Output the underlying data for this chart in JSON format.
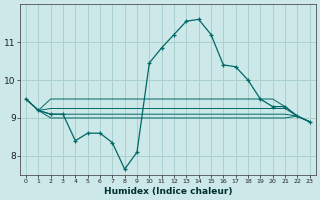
{
  "xlabel": "Humidex (Indice chaleur)",
  "background_color": "#cce8e8",
  "grid_color": "#aad0d0",
  "line_color": "#006868",
  "x_values": [
    0,
    1,
    2,
    3,
    4,
    5,
    6,
    7,
    8,
    9,
    10,
    11,
    12,
    13,
    14,
    15,
    16,
    17,
    18,
    19,
    20,
    21,
    22,
    23
  ],
  "main_y": [
    9.5,
    9.2,
    9.1,
    9.1,
    8.4,
    8.6,
    8.6,
    8.35,
    7.65,
    8.1,
    10.45,
    10.85,
    11.2,
    11.55,
    11.6,
    11.2,
    10.4,
    10.35,
    10.0,
    9.5,
    9.3,
    9.3,
    9.05,
    8.9
  ],
  "line1_y": [
    9.5,
    9.2,
    9.5,
    9.5,
    9.5,
    9.5,
    9.5,
    9.5,
    9.5,
    9.5,
    9.5,
    9.5,
    9.5,
    9.5,
    9.5,
    9.5,
    9.5,
    9.5,
    9.5,
    9.5,
    9.5,
    9.3,
    9.05,
    8.9
  ],
  "line2_y": [
    9.5,
    9.2,
    9.25,
    9.25,
    9.25,
    9.25,
    9.25,
    9.25,
    9.25,
    9.25,
    9.25,
    9.25,
    9.25,
    9.25,
    9.25,
    9.25,
    9.25,
    9.25,
    9.25,
    9.25,
    9.25,
    9.25,
    9.05,
    8.9
  ],
  "line3_y": [
    9.5,
    9.2,
    9.1,
    9.1,
    9.1,
    9.1,
    9.1,
    9.1,
    9.1,
    9.1,
    9.1,
    9.1,
    9.1,
    9.1,
    9.1,
    9.1,
    9.1,
    9.1,
    9.1,
    9.1,
    9.1,
    9.1,
    9.05,
    8.9
  ],
  "line4_y": [
    9.5,
    9.2,
    9.0,
    9.0,
    9.0,
    9.0,
    9.0,
    9.0,
    9.0,
    9.0,
    9.0,
    9.0,
    9.0,
    9.0,
    9.0,
    9.0,
    9.0,
    9.0,
    9.0,
    9.0,
    9.0,
    9.0,
    9.05,
    8.9
  ],
  "ylim": [
    7.5,
    12.0
  ],
  "yticks": [
    8,
    9,
    10,
    11
  ],
  "xticks": [
    0,
    1,
    2,
    3,
    4,
    5,
    6,
    7,
    8,
    9,
    10,
    11,
    12,
    13,
    14,
    15,
    16,
    17,
    18,
    19,
    20,
    21,
    22,
    23
  ]
}
